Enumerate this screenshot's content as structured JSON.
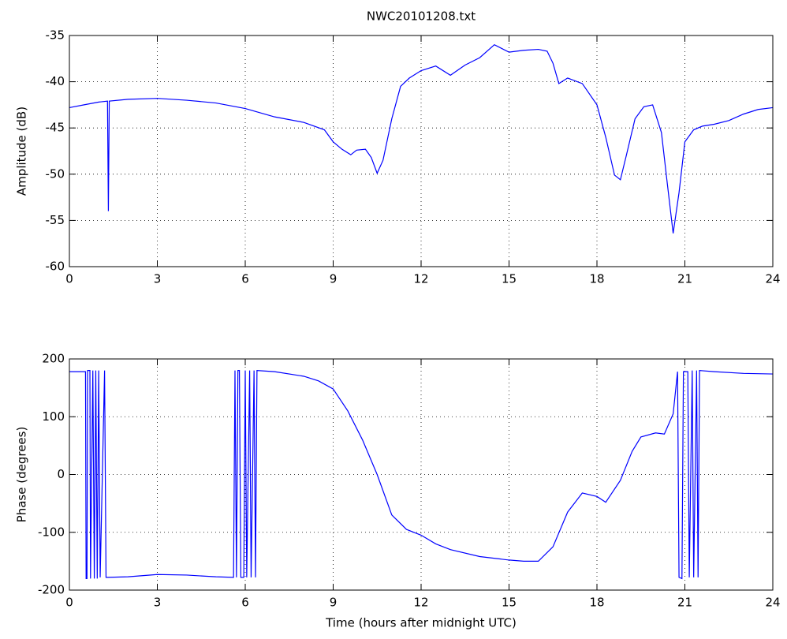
{
  "chart_data": [
    {
      "type": "line",
      "title": "NWC20101208.txt",
      "ylabel": "Amplitude (dB)",
      "xlim": [
        0,
        24
      ],
      "xticks": [
        0,
        3,
        6,
        9,
        12,
        15,
        18,
        21,
        24
      ],
      "ylim": [
        -60,
        -35
      ],
      "yticks": [
        -60,
        -55,
        -50,
        -45,
        -40,
        -35
      ],
      "grid": true,
      "x": [
        0,
        0.5,
        1,
        1.3,
        1.33,
        1.36,
        2,
        3,
        4,
        5,
        6,
        7,
        8,
        8.7,
        9,
        9.3,
        9.6,
        9.8,
        10.1,
        10.3,
        10.5,
        10.7,
        11,
        11.3,
        11.6,
        12,
        12.5,
        13,
        13.5,
        14,
        14.5,
        15,
        15.5,
        16,
        16.3,
        16.5,
        16.7,
        17,
        17.5,
        18,
        18.3,
        18.6,
        18.8,
        19,
        19.3,
        19.6,
        19.9,
        20.2,
        20.4,
        20.6,
        20.8,
        21,
        21.3,
        21.6,
        22,
        22.5,
        23,
        23.5,
        24
      ],
      "series": [
        {
          "color": "#0000ff",
          "values": [
            -42.8,
            -42.5,
            -42.2,
            -42.1,
            -54,
            -42.1,
            -41.9,
            -41.8,
            -42,
            -42.3,
            -42.9,
            -43.8,
            -44.4,
            -45.2,
            -46.5,
            -47.3,
            -47.9,
            -47.4,
            -47.3,
            -48.2,
            -49.9,
            -48.5,
            -44,
            -40.5,
            -39.6,
            -38.8,
            -38.3,
            -39.3,
            -38.2,
            -37.4,
            -36,
            -36.8,
            -36.6,
            -36.5,
            -36.7,
            -38,
            -40.2,
            -39.6,
            -40.2,
            -42.5,
            -46,
            -50.1,
            -50.6,
            -48,
            -44,
            -42.7,
            -42.5,
            -45.5,
            -51,
            -56.4,
            -52,
            -46.5,
            -45.2,
            -44.8,
            -44.6,
            -44.2,
            -43.5,
            -43,
            -42.8
          ]
        }
      ]
    },
    {
      "type": "line",
      "ylabel": "Phase (degrees)",
      "xlabel": "Time (hours after midnight UTC)",
      "xlim": [
        0,
        24
      ],
      "xticks": [
        0,
        3,
        6,
        9,
        12,
        15,
        18,
        21,
        24
      ],
      "ylim": [
        -200,
        200
      ],
      "yticks": [
        -200,
        -100,
        0,
        100,
        200
      ],
      "grid": true,
      "x": [
        0,
        0.5,
        0.55,
        0.57,
        0.6,
        0.62,
        0.7,
        0.72,
        0.8,
        0.85,
        0.9,
        0.95,
        1.0,
        1.05,
        1.2,
        1.25,
        1.3,
        2,
        3,
        4,
        5,
        5.6,
        5.65,
        5.7,
        5.75,
        5.8,
        5.85,
        5.95,
        6.0,
        6.05,
        6.15,
        6.2,
        6.3,
        6.35,
        6.4,
        7,
        8,
        8.5,
        9,
        9.5,
        10,
        10.5,
        11,
        11.5,
        12,
        12.5,
        13,
        14,
        15,
        15.5,
        16,
        16.5,
        17,
        17.5,
        18,
        18.3,
        18.8,
        19.2,
        19.5,
        20,
        20.3,
        20.6,
        20.75,
        20.8,
        20.9,
        20.95,
        21.1,
        21.15,
        21.25,
        21.3,
        21.4,
        21.45,
        21.5,
        22,
        23,
        24
      ],
      "series": [
        {
          "color": "#0000ff",
          "values": [
            178,
            178,
            178,
            -180,
            -180,
            180,
            180,
            -180,
            180,
            -180,
            180,
            -180,
            180,
            -178,
            180,
            -178,
            -178,
            -177,
            -173,
            -174,
            -177,
            -178,
            180,
            -178,
            180,
            180,
            -178,
            -178,
            180,
            -178,
            180,
            -178,
            180,
            -178,
            180,
            178,
            170,
            162,
            148,
            110,
            60,
            0,
            -70,
            -95,
            -105,
            -120,
            -130,
            -142,
            -148,
            -150,
            -150,
            -125,
            -65,
            -32,
            -38,
            -48,
            -10,
            40,
            65,
            72,
            70,
            105,
            178,
            -178,
            -180,
            178,
            178,
            -178,
            180,
            -178,
            180,
            -178,
            180,
            178,
            175,
            174
          ]
        }
      ]
    }
  ]
}
